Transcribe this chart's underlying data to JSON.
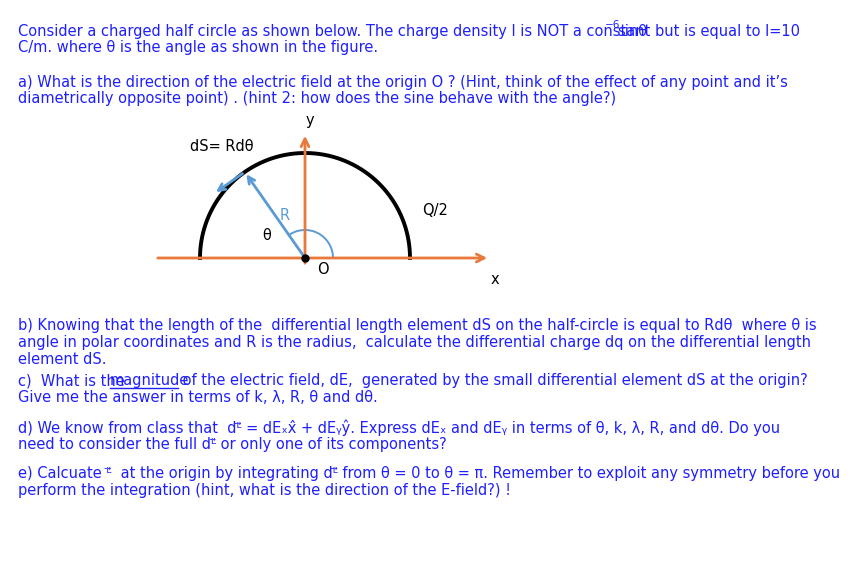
{
  "line1a": "Consider a charged half circle as shown below. The charge density l is NOT a constant but is equal to l=10",
  "line1sup": "−6",
  "line1b": "sinθ",
  "line2": "C/m. where θ is the angle as shown in the figure.",
  "part_a1": "a) What is the direction of the electric field at the origin O ? (Hint, think of the effect of any point and it’s",
  "part_a2": "diametrically opposite point) . (hint 2: how does the sine behave with the angle?)",
  "part_b1": "b) Knowing that the length of the  differential length element dS on the half-circle is equal to Rdθ  where θ is",
  "part_b2": "angle in polar coordinates and R is the radius,  calculate the differential charge dq on the differential length",
  "part_b3": "element dS.",
  "part_c1a": "c)  What is the ",
  "part_c1b": "magnitude",
  "part_c1c": " of the electric field, dE,  generated by the small differential element dS at the origin?",
  "part_c2": "Give me the answer in terms of k, λ, R, θ and dθ.",
  "part_d1": "d) We know from class that  dᴸ⃗ = dEₓx̂ + dEᵧŷ. Express dEₓ and dEᵧ in terms of θ, k, λ, R, and dθ. Do you",
  "part_d2": "need to consider the full dᴸ⃗ or only one of its components?",
  "part_e1": "e) Calcuate ᴸ⃗  at the origin by integrating dᴸ⃗ from θ = 0 to θ = π. Remember to exploit any symmetry before you",
  "part_e2": "perform the integration (hint, what is the direction of the E-field?) !",
  "diag_y_label": "y",
  "diag_x_label": "x",
  "diag_ds_label": "dS= Rdθ",
  "diag_R_label": "R",
  "diag_theta_label": "θ",
  "diag_O_label": "O",
  "diag_Q2_label": "Q/2",
  "arc_color": "#000000",
  "axis_color": "#e8793a",
  "arrow_color": "#5b9bd5",
  "text_color": "#1f1fff",
  "black": "#000000",
  "bg_color": "#ffffff",
  "fs": 10.5
}
